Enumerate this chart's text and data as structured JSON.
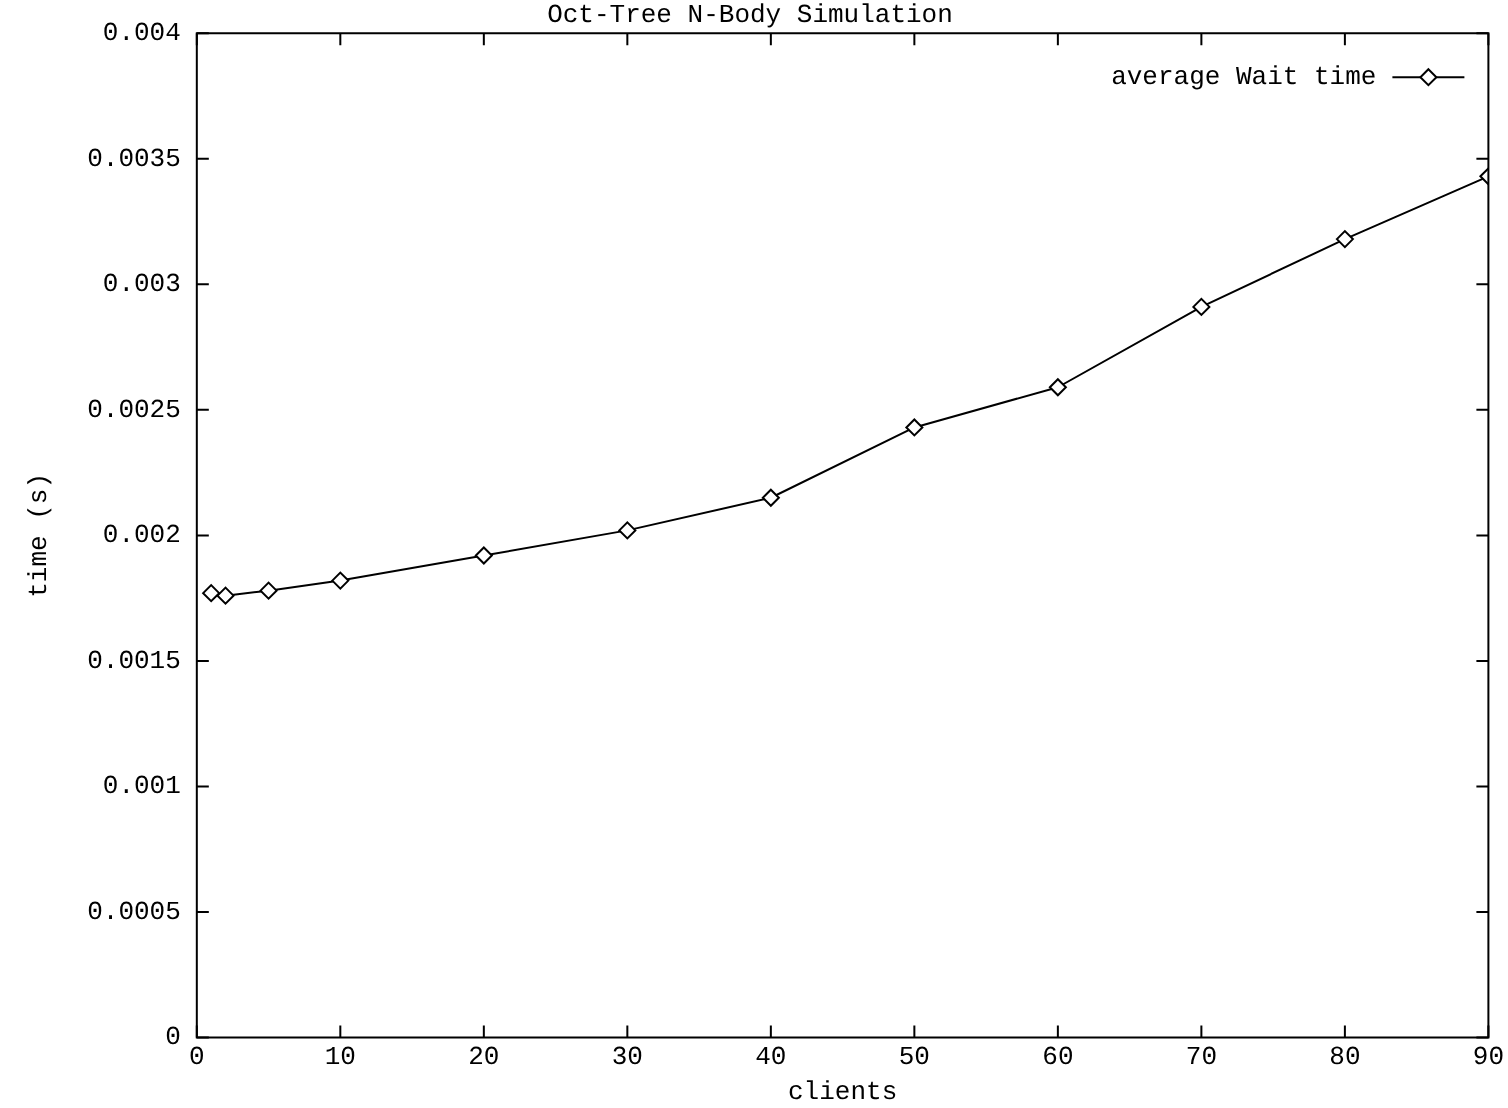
{
  "chart_data": {
    "type": "line",
    "title": "Oct-Tree N-Body Simulation",
    "xlabel": "clients",
    "ylabel": "time (s)",
    "x": [
      1,
      2,
      5,
      10,
      20,
      30,
      40,
      50,
      60,
      70,
      80,
      90
    ],
    "series": [
      {
        "name": "average Wait time",
        "color": "#000000",
        "values": [
          0.00177,
          0.00176,
          0.00178,
          0.00182,
          0.00192,
          0.00202,
          0.00215,
          0.00243,
          0.00259,
          0.00291,
          0.00318,
          0.00343
        ]
      }
    ],
    "xlim": [
      0,
      90
    ],
    "xticks": [
      0,
      10,
      20,
      30,
      40,
      50,
      60,
      70,
      80,
      90
    ],
    "ylim": [
      0,
      0.004
    ],
    "yticks": [
      0,
      0.0005,
      0.001,
      0.0015,
      0.002,
      0.0025,
      0.003,
      0.0035,
      0.004
    ],
    "grid": false,
    "legend": "top right",
    "marker": "diamond",
    "line_style": "solid"
  }
}
